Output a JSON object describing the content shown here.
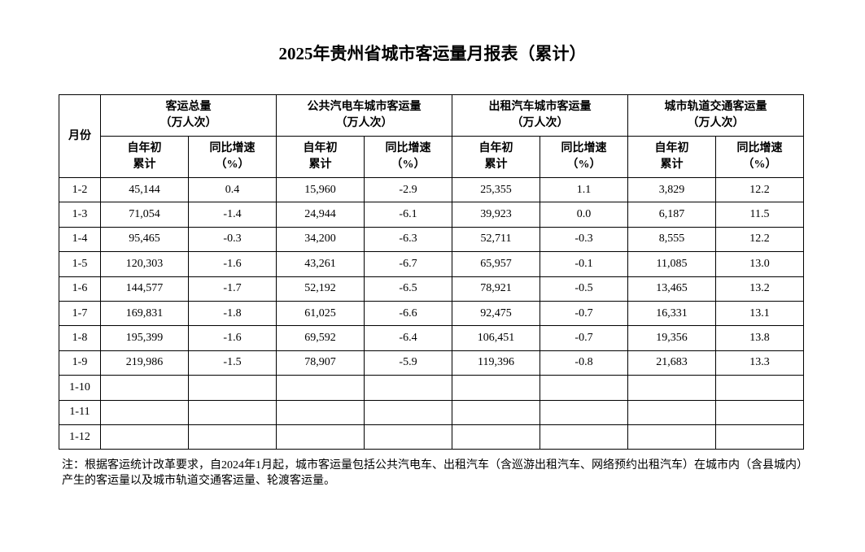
{
  "title": "2025年贵州省城市客运量月报表（累计）",
  "header": {
    "month": "月份",
    "groups": [
      {
        "name": "客运总量",
        "unit": "（万人次）"
      },
      {
        "name": "公共汽电车城市客运量",
        "unit": "（万人次）"
      },
      {
        "name": "出租汽车城市客运量",
        "unit": "（万人次）"
      },
      {
        "name": "城市轨道交通客运量",
        "unit": "（万人次）"
      }
    ],
    "sub_cumulative_1": "自年初",
    "sub_cumulative_2": "累计",
    "sub_growth_1": "同比增速",
    "sub_growth_2": "（%）"
  },
  "rows": [
    {
      "month": "1-2",
      "values": [
        "45,144",
        "0.4",
        "15,960",
        "-2.9",
        "25,355",
        "1.1",
        "3,829",
        "12.2"
      ]
    },
    {
      "month": "1-3",
      "values": [
        "71,054",
        "-1.4",
        "24,944",
        "-6.1",
        "39,923",
        "0.0",
        "6,187",
        "11.5"
      ]
    },
    {
      "month": "1-4",
      "values": [
        "95,465",
        "-0.3",
        "34,200",
        "-6.3",
        "52,711",
        "-0.3",
        "8,555",
        "12.2"
      ]
    },
    {
      "month": "1-5",
      "values": [
        "120,303",
        "-1.6",
        "43,261",
        "-6.7",
        "65,957",
        "-0.1",
        "11,085",
        "13.0"
      ]
    },
    {
      "month": "1-6",
      "values": [
        "144,577",
        "-1.7",
        "52,192",
        "-6.5",
        "78,921",
        "-0.5",
        "13,465",
        "13.2"
      ]
    },
    {
      "month": "1-7",
      "values": [
        "169,831",
        "-1.8",
        "61,025",
        "-6.6",
        "92,475",
        "-0.7",
        "16,331",
        "13.1"
      ]
    },
    {
      "month": "1-8",
      "values": [
        "195,399",
        "-1.6",
        "69,592",
        "-6.4",
        "106,451",
        "-0.7",
        "19,356",
        "13.8"
      ]
    },
    {
      "month": "1-9",
      "values": [
        "219,986",
        "-1.5",
        "78,907",
        "-5.9",
        "119,396",
        "-0.8",
        "21,683",
        "13.3"
      ]
    },
    {
      "month": "1-10",
      "values": [
        "",
        "",
        "",
        "",
        "",
        "",
        "",
        ""
      ]
    },
    {
      "month": "1-11",
      "values": [
        "",
        "",
        "",
        "",
        "",
        "",
        "",
        ""
      ]
    },
    {
      "month": "1-12",
      "values": [
        "",
        "",
        "",
        "",
        "",
        "",
        "",
        ""
      ]
    }
  ],
  "note": "注：根据客运统计改革要求，自2024年1月起，城市客运量包括公共汽电车、出租汽车（含巡游出租汽车、网络预约出租汽车）在城市内（含县城内）产生的客运量以及城市轨道交通客运量、轮渡客运量。"
}
